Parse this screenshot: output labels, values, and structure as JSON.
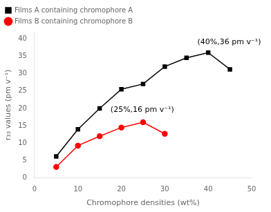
{
  "chart_data": {
    "type": "line",
    "series": [
      {
        "name": "Films A containing chromophore A",
        "color": "#000000",
        "marker": "square",
        "x": [
          5,
          10,
          15,
          20,
          25,
          30,
          35,
          40,
          45
        ],
        "values": [
          6.2,
          14.0,
          20.0,
          25.5,
          27.0,
          32.0,
          34.5,
          36.0,
          31.2
        ]
      },
      {
        "name": "Films B containing chromophore B",
        "color": "#ff0000",
        "marker": "circle",
        "x": [
          5,
          10,
          15,
          20,
          25,
          30
        ],
        "values": [
          3.2,
          9.3,
          12.0,
          14.5,
          16.0,
          12.7
        ]
      }
    ],
    "annotations": [
      {
        "text": "(40%,36 pm v⁻¹)",
        "x": 37.5,
        "y": 38.0
      },
      {
        "text": "(25%,16 pm v⁻¹)",
        "x": 17.5,
        "y": 18.5
      }
    ],
    "xlabel": "Chromophore densities (wt%)",
    "ylabel": "r₃₃ values (pm v⁻¹)",
    "xlim": [
      0,
      50
    ],
    "ylim": [
      0,
      42
    ],
    "xticks": [
      0,
      10,
      20,
      30,
      40,
      50
    ],
    "yticks": [
      0,
      5,
      10,
      15,
      20,
      25,
      30,
      35,
      40
    ],
    "grid": false,
    "legend": "upper left"
  }
}
